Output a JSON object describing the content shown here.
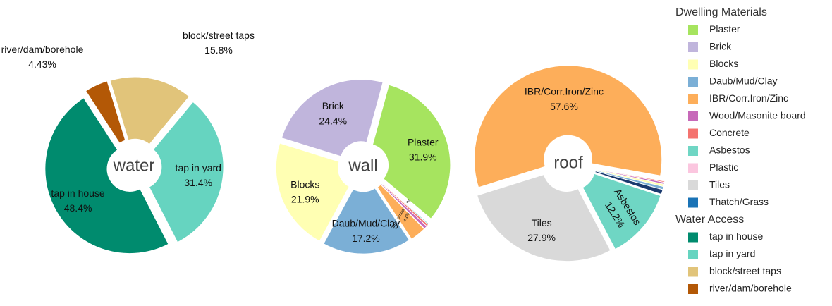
{
  "chart_data": [
    {
      "type": "pie",
      "title": "water",
      "labels": [
        "tap in house",
        "tap in yard",
        "block/street taps",
        "river/dam/borehole"
      ],
      "values": [
        48.4,
        31.4,
        15.8,
        4.43
      ],
      "value_labels": [
        "48.4%",
        "31.4%",
        "15.8%",
        "4.43%"
      ],
      "colors": [
        "#008b6e",
        "#66d4c0",
        "#e1c47a",
        "#b35806"
      ]
    },
    {
      "type": "pie",
      "title": "wall",
      "labels": [
        "Plaster",
        "Brick",
        "Blocks",
        "Daub/Mud/Clay",
        "IBR/Corr.Iron/Zinc",
        "Wood/Masonite board",
        "Concrete",
        "Asbestos",
        "Plastic",
        "Tiles",
        "Thatch/Grass"
      ],
      "values": [
        31.9,
        24.4,
        21.9,
        17.2,
        3.1,
        0.6,
        0.4,
        0.2,
        0.1,
        0.1,
        0.1
      ],
      "value_labels": [
        "31.9%",
        "24.4%",
        "21.9%",
        "17.2%",
        "3.1%",
        null,
        null,
        null,
        null,
        null,
        null
      ],
      "colors": [
        "#a6e45f",
        "#c0b5dc",
        "#ffffb3",
        "#7bafd6",
        "#fdae5a",
        "#c769b9",
        "#f4736f",
        "#6fd6c4",
        "#fbc6df",
        "#d9d9d9",
        "#1a73b6"
      ]
    },
    {
      "type": "pie",
      "title": "roof",
      "labels": [
        "IBR/Corr.Iron/Zinc",
        "Tiles",
        "Asbestos",
        "Thatch/Grass",
        "Daub/Mud/Clay",
        "Blocks",
        "Wood/Masonite board",
        "Concrete",
        "Plastic"
      ],
      "values": [
        57.6,
        27.9,
        12.2,
        0.8,
        0.5,
        0.4,
        0.3,
        0.2,
        0.1
      ],
      "value_labels": [
        "57.6%",
        "27.9%",
        "12.2%",
        null,
        null,
        null,
        null,
        null,
        null
      ],
      "colors": [
        "#fdae5a",
        "#d9d9d9",
        "#6fd6c4",
        "#1a3a6e",
        "#7bafd6",
        "#ffffb3",
        "#c769b9",
        "#f4736f",
        "#fbc6df"
      ]
    }
  ],
  "legend": [
    {
      "title": "Dwelling Materials",
      "items": [
        {
          "name": "Plaster",
          "color": "#a6e45f"
        },
        {
          "name": "Brick",
          "color": "#c0b5dc"
        },
        {
          "name": "Blocks",
          "color": "#ffffb3"
        },
        {
          "name": "Daub/Mud/Clay",
          "color": "#7bafd6"
        },
        {
          "name": "IBR/Corr.Iron/Zinc",
          "color": "#fdae5a"
        },
        {
          "name": "Wood/Masonite board",
          "color": "#c769b9"
        },
        {
          "name": "Concrete",
          "color": "#f4736f"
        },
        {
          "name": "Asbestos",
          "color": "#6fd6c4"
        },
        {
          "name": "Plastic",
          "color": "#fbc6df"
        },
        {
          "name": "Tiles",
          "color": "#d9d9d9"
        },
        {
          "name": "Thatch/Grass",
          "color": "#1a73b6"
        }
      ]
    },
    {
      "title": "Water Access",
      "items": [
        {
          "name": "tap in house",
          "color": "#008b6e"
        },
        {
          "name": "tap in yard",
          "color": "#66d4c0"
        },
        {
          "name": "block/street taps",
          "color": "#e1c47a"
        },
        {
          "name": "river/dam/borehole",
          "color": "#b35806"
        }
      ]
    }
  ]
}
